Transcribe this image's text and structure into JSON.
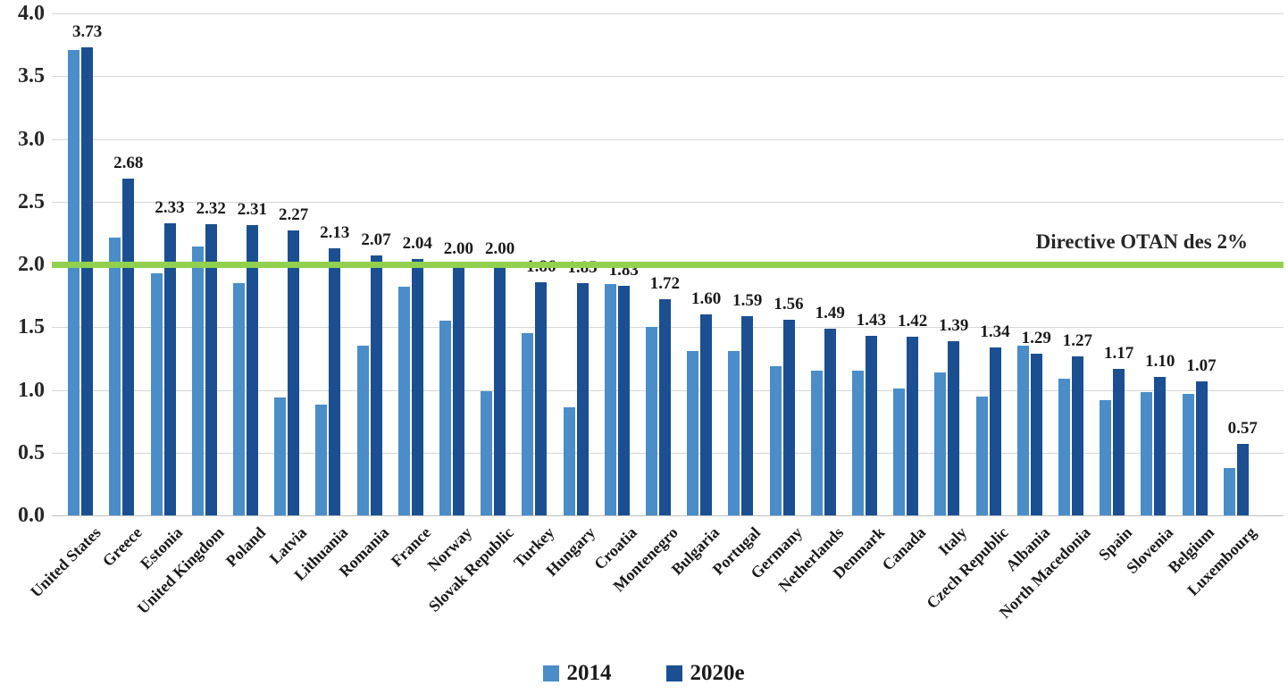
{
  "chart_data": {
    "type": "bar",
    "title": "",
    "xlabel": "",
    "ylabel": "",
    "categories": [
      "United States",
      "Greece",
      "Estonia",
      "United Kingdom",
      "Poland",
      "Latvia",
      "Lithuania",
      "Romania",
      "France",
      "Norway",
      "Slovak Republic",
      "Turkey",
      "Hungary",
      "Croatia",
      "Montenegro",
      "Bulgaria",
      "Portugal",
      "Germany",
      "Netherlands",
      "Denmark",
      "Canada",
      "Italy",
      "Czech Republic",
      "Albania",
      "North Macedonia",
      "Spain",
      "Slovenia",
      "Belgium",
      "Luxembourg"
    ],
    "series": [
      {
        "name": "2014",
        "color": "#4a8dc8",
        "values": [
          3.71,
          2.21,
          1.93,
          2.14,
          1.85,
          0.94,
          0.88,
          1.35,
          1.82,
          1.55,
          0.99,
          1.45,
          0.86,
          1.84,
          1.5,
          1.31,
          1.31,
          1.19,
          1.15,
          1.15,
          1.01,
          1.14,
          0.95,
          1.35,
          1.09,
          0.92,
          0.98,
          0.97,
          0.38
        ],
        "data_labels": false
      },
      {
        "name": "2020e",
        "color": "#1b4f91",
        "values": [
          3.73,
          2.68,
          2.33,
          2.32,
          2.31,
          2.27,
          2.13,
          2.07,
          2.04,
          2.0,
          2.0,
          1.86,
          1.85,
          1.83,
          1.72,
          1.6,
          1.59,
          1.56,
          1.49,
          1.43,
          1.42,
          1.39,
          1.34,
          1.29,
          1.27,
          1.17,
          1.1,
          1.07,
          0.57
        ],
        "data_labels": true
      }
    ],
    "ylim": [
      0.0,
      4.0
    ],
    "ytick_step": 0.5,
    "yticks": [
      "4.0",
      "3.5",
      "3.0",
      "2.5",
      "2.0",
      "1.5",
      "1.0",
      "0.5",
      "0.0"
    ],
    "grid": true,
    "legend_position": "bottom",
    "reference_line": {
      "value": 2.0,
      "label": "Directive OTAN des 2%",
      "color": "#92d050"
    },
    "gridline_color": "#d6d6d6",
    "axis_line_color": "#bfbfbf"
  }
}
